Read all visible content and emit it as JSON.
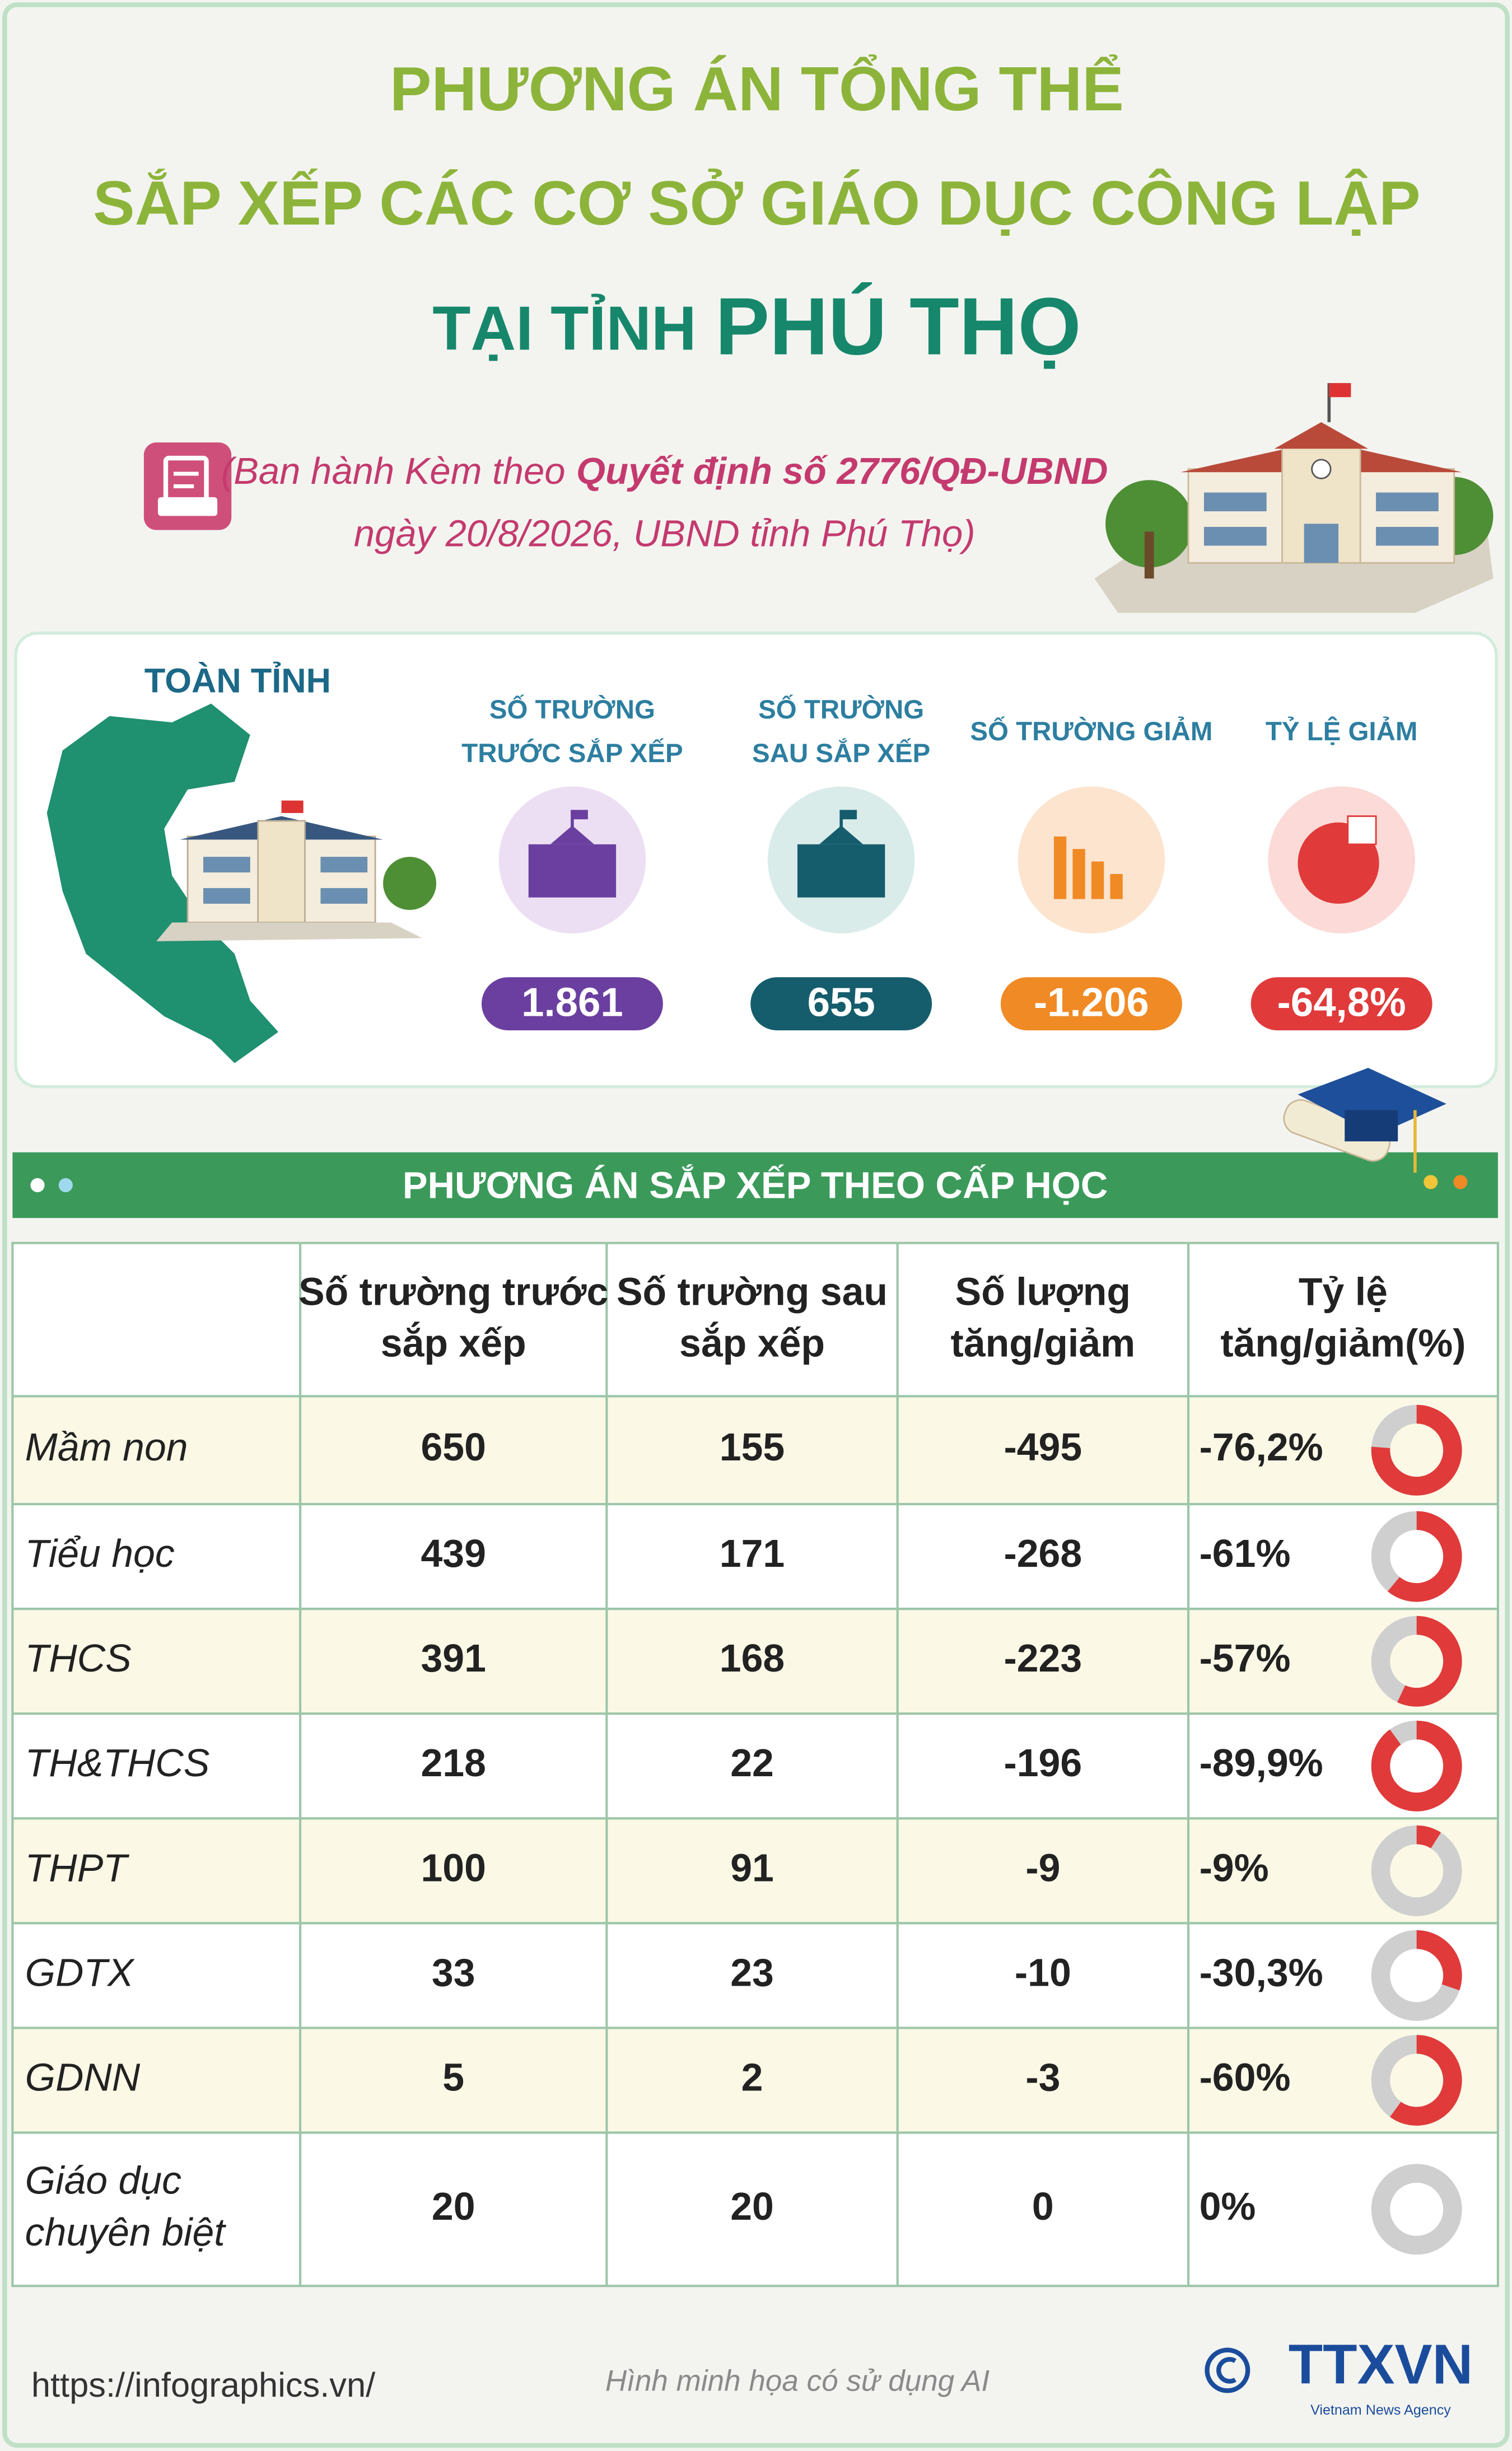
{
  "header": {
    "title_lines": [
      "PHƯƠNG ÁN TỔNG THỂ",
      "SẮP XẾP CÁC CƠ SỞ GIÁO DỤC CÔNG LẬP"
    ],
    "province_prefix": "TẠI TỈNH",
    "province": "PHÚ THỌ"
  },
  "subtitle": {
    "prefix": "(Ban hành Kèm theo",
    "decision": "Quyết định số 2776/QĐ-UBND",
    "line2": "ngày 20/8/2026, UBND tỉnh Phú Thọ)"
  },
  "summary": {
    "title": "TOÀN TỈNH",
    "stats": [
      {
        "label_lines": [
          "SỐ TRƯỜNG",
          "TRƯỚC SẮP XẾP"
        ],
        "value": "1.861"
      },
      {
        "label_lines": [
          "SỐ TRƯỜNG",
          "SAU SẮP XẾP"
        ],
        "value": "655"
      },
      {
        "label_lines": [
          "SỐ TRƯỜNG GIẢM"
        ],
        "value": "-1.206"
      },
      {
        "label_lines": [
          "TỶ LỆ GIẢM"
        ],
        "value": "-64,8%"
      }
    ]
  },
  "section_title": "PHƯƠNG ÁN SẮP XẾP THEO CẤP HỌC",
  "table": {
    "headers": [
      [
        "Số trường trước",
        "sắp xếp"
      ],
      [
        "Số trường sau",
        "sắp xếp"
      ],
      [
        "Số lượng",
        "tăng/giảm"
      ],
      [
        "Tỷ lệ",
        "tăng/giảm(%)"
      ]
    ],
    "rows": [
      {
        "name": [
          "Mầm non"
        ],
        "before": 650,
        "after": 155,
        "change": -495,
        "rate": {
          "value": -76.2,
          "label": "-76,2%"
        }
      },
      {
        "name": [
          "Tiểu học"
        ],
        "before": 439,
        "after": 171,
        "change": -268,
        "rate": {
          "value": -61,
          "label": "-61%"
        }
      },
      {
        "name": [
          "THCS"
        ],
        "before": 391,
        "after": 168,
        "change": -223,
        "rate": {
          "value": -57,
          "label": "-57%"
        }
      },
      {
        "name": [
          "TH&THCS"
        ],
        "before": 218,
        "after": 22,
        "change": -196,
        "rate": {
          "value": -89.9,
          "label": "-89,9%"
        }
      },
      {
        "name": [
          "THPT"
        ],
        "before": 100,
        "after": 91,
        "change": -9,
        "rate": {
          "value": -9,
          "label": "-9%"
        }
      },
      {
        "name": [
          "GDTX"
        ],
        "before": 33,
        "after": 23,
        "change": -10,
        "rate": {
          "value": -30.3,
          "label": "-30,3%"
        }
      },
      {
        "name": [
          "GDNN"
        ],
        "before": 5,
        "after": 2,
        "change": -3,
        "rate": {
          "value": -60,
          "label": "-60%"
        }
      },
      {
        "name": [
          "Giáo dục",
          "chuyên biệt"
        ],
        "before": 20,
        "after": 20,
        "change": 0,
        "rate": {
          "value": 0,
          "label": "0%"
        }
      }
    ]
  },
  "footer": {
    "url": "https://infographics.vn/",
    "note": "Hình minh họa có sử dụng AI",
    "logo": "TTXVN",
    "logo_sub": "Vietnam News Agency"
  }
}
